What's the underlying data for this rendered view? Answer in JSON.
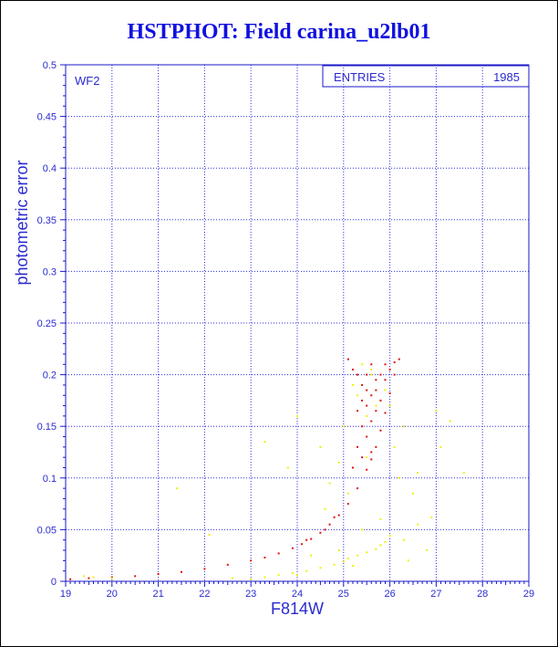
{
  "chart_data": {
    "type": "scatter",
    "title": "HSTPHOT: Field carina_u2lb01",
    "xlabel": "F814W",
    "ylabel": "photometric error",
    "xlim": [
      19,
      29
    ],
    "ylim": [
      0,
      0.5
    ],
    "x_ticks": [
      "19",
      "20",
      "21",
      "22",
      "23",
      "24",
      "25",
      "26",
      "27",
      "28",
      "29"
    ],
    "y_ticks": [
      "0",
      "0.05",
      "0.1",
      "0.15",
      "0.2",
      "0.25",
      "0.3",
      "0.35",
      "0.4",
      "0.45",
      "0.5"
    ],
    "grid": true,
    "panel_label": "WF2",
    "stats_box": {
      "label": "ENTRIES",
      "value": "1985"
    },
    "colors": {
      "axis": "#1818c8",
      "grid": "#3030e0",
      "title": "#1010e0",
      "main_sequence": "#e01010",
      "secondary": "#f0f000"
    },
    "series": [
      {
        "color": "#e01010",
        "points": [
          [
            19.1,
            0.002
          ],
          [
            19.5,
            0.003
          ],
          [
            20.0,
            0.004
          ],
          [
            20.5,
            0.005
          ],
          [
            21.0,
            0.007
          ],
          [
            21.5,
            0.009
          ],
          [
            22.0,
            0.012
          ],
          [
            22.5,
            0.016
          ],
          [
            23.0,
            0.02
          ],
          [
            23.3,
            0.023
          ],
          [
            23.6,
            0.027
          ],
          [
            23.9,
            0.032
          ],
          [
            24.1,
            0.036
          ],
          [
            24.3,
            0.041
          ],
          [
            24.5,
            0.047
          ],
          [
            24.7,
            0.055
          ],
          [
            24.9,
            0.064
          ],
          [
            25.1,
            0.075
          ],
          [
            25.3,
            0.09
          ],
          [
            25.5,
            0.108
          ],
          [
            25.6,
            0.118
          ],
          [
            25.7,
            0.13
          ],
          [
            25.8,
            0.146
          ],
          [
            25.9,
            0.163
          ],
          [
            26.0,
            0.182
          ],
          [
            26.1,
            0.2
          ],
          [
            26.2,
            0.215
          ],
          [
            25.1,
            0.215
          ],
          [
            25.2,
            0.205
          ],
          [
            25.3,
            0.2
          ],
          [
            25.4,
            0.19
          ],
          [
            25.5,
            0.17
          ],
          [
            25.6,
            0.155
          ],
          [
            25.4,
            0.15
          ],
          [
            25.5,
            0.14
          ],
          [
            25.3,
            0.13
          ],
          [
            25.7,
            0.185
          ],
          [
            25.8,
            0.2
          ],
          [
            25.9,
            0.21
          ],
          [
            25.6,
            0.21
          ],
          [
            25.5,
            0.2
          ],
          [
            25.7,
            0.165
          ],
          [
            25.8,
            0.175
          ],
          [
            25.2,
            0.11
          ],
          [
            25.6,
            0.125
          ],
          [
            25.4,
            0.12
          ],
          [
            24.8,
            0.062
          ],
          [
            24.6,
            0.05
          ],
          [
            24.2,
            0.04
          ],
          [
            25.5,
            0.185
          ],
          [
            25.4,
            0.175
          ],
          [
            25.3,
            0.165
          ],
          [
            25.6,
            0.18
          ],
          [
            25.9,
            0.195
          ],
          [
            26.0,
            0.205
          ],
          [
            26.1,
            0.212
          ],
          [
            25.7,
            0.195
          ]
        ]
      },
      {
        "color": "#f0f000",
        "points": [
          [
            19.4,
            0.005
          ],
          [
            19.6,
            0.004
          ],
          [
            21.4,
            0.09
          ],
          [
            22.1,
            0.045
          ],
          [
            23.0,
            0.002
          ],
          [
            23.3,
            0.004
          ],
          [
            23.6,
            0.006
          ],
          [
            23.9,
            0.008
          ],
          [
            24.2,
            0.01
          ],
          [
            24.5,
            0.013
          ],
          [
            24.8,
            0.016
          ],
          [
            25.0,
            0.019
          ],
          [
            25.1,
            0.022
          ],
          [
            25.3,
            0.025
          ],
          [
            25.5,
            0.028
          ],
          [
            25.7,
            0.031
          ],
          [
            25.8,
            0.035
          ],
          [
            25.9,
            0.038
          ],
          [
            26.0,
            0.044
          ],
          [
            26.3,
            0.04
          ],
          [
            26.6,
            0.055
          ],
          [
            26.9,
            0.062
          ],
          [
            24.5,
            0.13
          ],
          [
            24.0,
            0.16
          ],
          [
            23.8,
            0.11
          ],
          [
            23.3,
            0.135
          ],
          [
            24.7,
            0.095
          ],
          [
            24.9,
            0.115
          ],
          [
            25.0,
            0.15
          ],
          [
            25.2,
            0.19
          ],
          [
            25.4,
            0.21
          ],
          [
            25.6,
            0.2
          ],
          [
            25.7,
            0.17
          ],
          [
            25.5,
            0.16
          ],
          [
            25.3,
            0.18
          ],
          [
            26.0,
            0.17
          ],
          [
            26.3,
            0.15
          ],
          [
            26.1,
            0.13
          ],
          [
            26.2,
            0.1
          ],
          [
            26.6,
            0.105
          ],
          [
            27.0,
            0.165
          ],
          [
            27.1,
            0.13
          ],
          [
            27.6,
            0.105
          ],
          [
            26.5,
            0.085
          ],
          [
            25.8,
            0.06
          ],
          [
            25.4,
            0.05
          ],
          [
            24.9,
            0.03
          ],
          [
            24.3,
            0.025
          ],
          [
            26.4,
            0.02
          ],
          [
            26.8,
            0.03
          ],
          [
            25.2,
            0.015
          ],
          [
            24.0,
            0.006
          ],
          [
            22.6,
            0.003
          ],
          [
            20.0,
            0.003
          ],
          [
            25.6,
            0.205
          ],
          [
            25.9,
            0.185
          ],
          [
            25.5,
            0.12
          ],
          [
            25.1,
            0.085
          ],
          [
            24.6,
            0.07
          ],
          [
            27.3,
            0.155
          ]
        ]
      }
    ]
  }
}
